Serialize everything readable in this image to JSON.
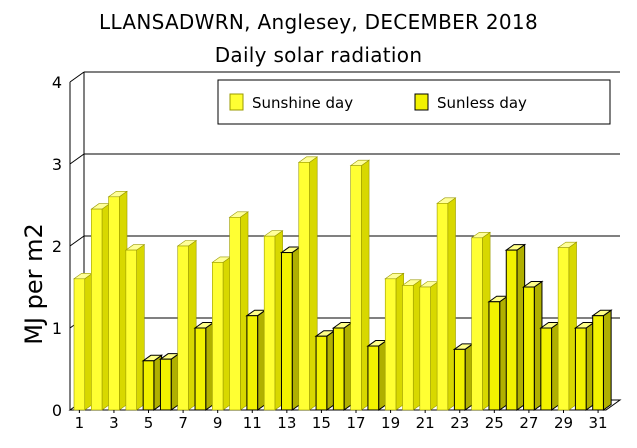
{
  "chart_data": {
    "type": "bar",
    "title": "LLANSADWRN, Anglesey, DECEMBER 2018",
    "subtitle": "Daily solar radiation",
    "ylabel": "MJ per m2",
    "xlabel": "",
    "ylim": [
      0,
      4
    ],
    "yticks": [
      "0",
      "1",
      "2",
      "3",
      "4"
    ],
    "x_tick_labels": [
      "1",
      "3",
      "5",
      "7",
      "9",
      "11",
      "13",
      "15",
      "17",
      "19",
      "21",
      "23",
      "25",
      "27",
      "29",
      "31"
    ],
    "days": [
      1,
      2,
      3,
      4,
      5,
      6,
      7,
      8,
      9,
      10,
      11,
      12,
      13,
      14,
      15,
      16,
      17,
      18,
      19,
      20,
      21,
      22,
      23,
      24,
      25,
      26,
      27,
      28,
      29,
      30,
      31
    ],
    "values": [
      1.6,
      2.45,
      2.6,
      1.95,
      0.6,
      0.62,
      2.0,
      1.0,
      1.8,
      2.35,
      1.15,
      2.12,
      1.92,
      3.02,
      0.9,
      1.0,
      2.98,
      0.78,
      1.6,
      1.52,
      1.5,
      2.52,
      0.74,
      2.1,
      1.32,
      1.95,
      1.5,
      1.0,
      1.98,
      1.0,
      1.15
    ],
    "day_type": [
      "sunshine",
      "sunshine",
      "sunshine",
      "sunshine",
      "sunless",
      "sunless",
      "sunshine",
      "sunless",
      "sunshine",
      "sunshine",
      "sunless",
      "sunshine",
      "sunless",
      "sunshine",
      "sunless",
      "sunless",
      "sunshine",
      "sunless",
      "sunshine",
      "sunshine",
      "sunshine",
      "sunshine",
      "sunless",
      "sunshine",
      "sunless",
      "sunless",
      "sunless",
      "sunless",
      "sunshine",
      "sunless",
      "sunless"
    ],
    "legend": [
      {
        "key": "sunshine",
        "label": "Sunshine day"
      },
      {
        "key": "sunless",
        "label": "Sunless day"
      }
    ],
    "legend_position": "top-right",
    "grid": true,
    "colors": {
      "sunshine_face": "#ffff33",
      "sunshine_side": "#d8d800",
      "sunshine_top": "#ffff99",
      "sunless_face": "#f2f200",
      "sunless_side": "#b0b000",
      "sunless_top": "#ffff88"
    }
  }
}
